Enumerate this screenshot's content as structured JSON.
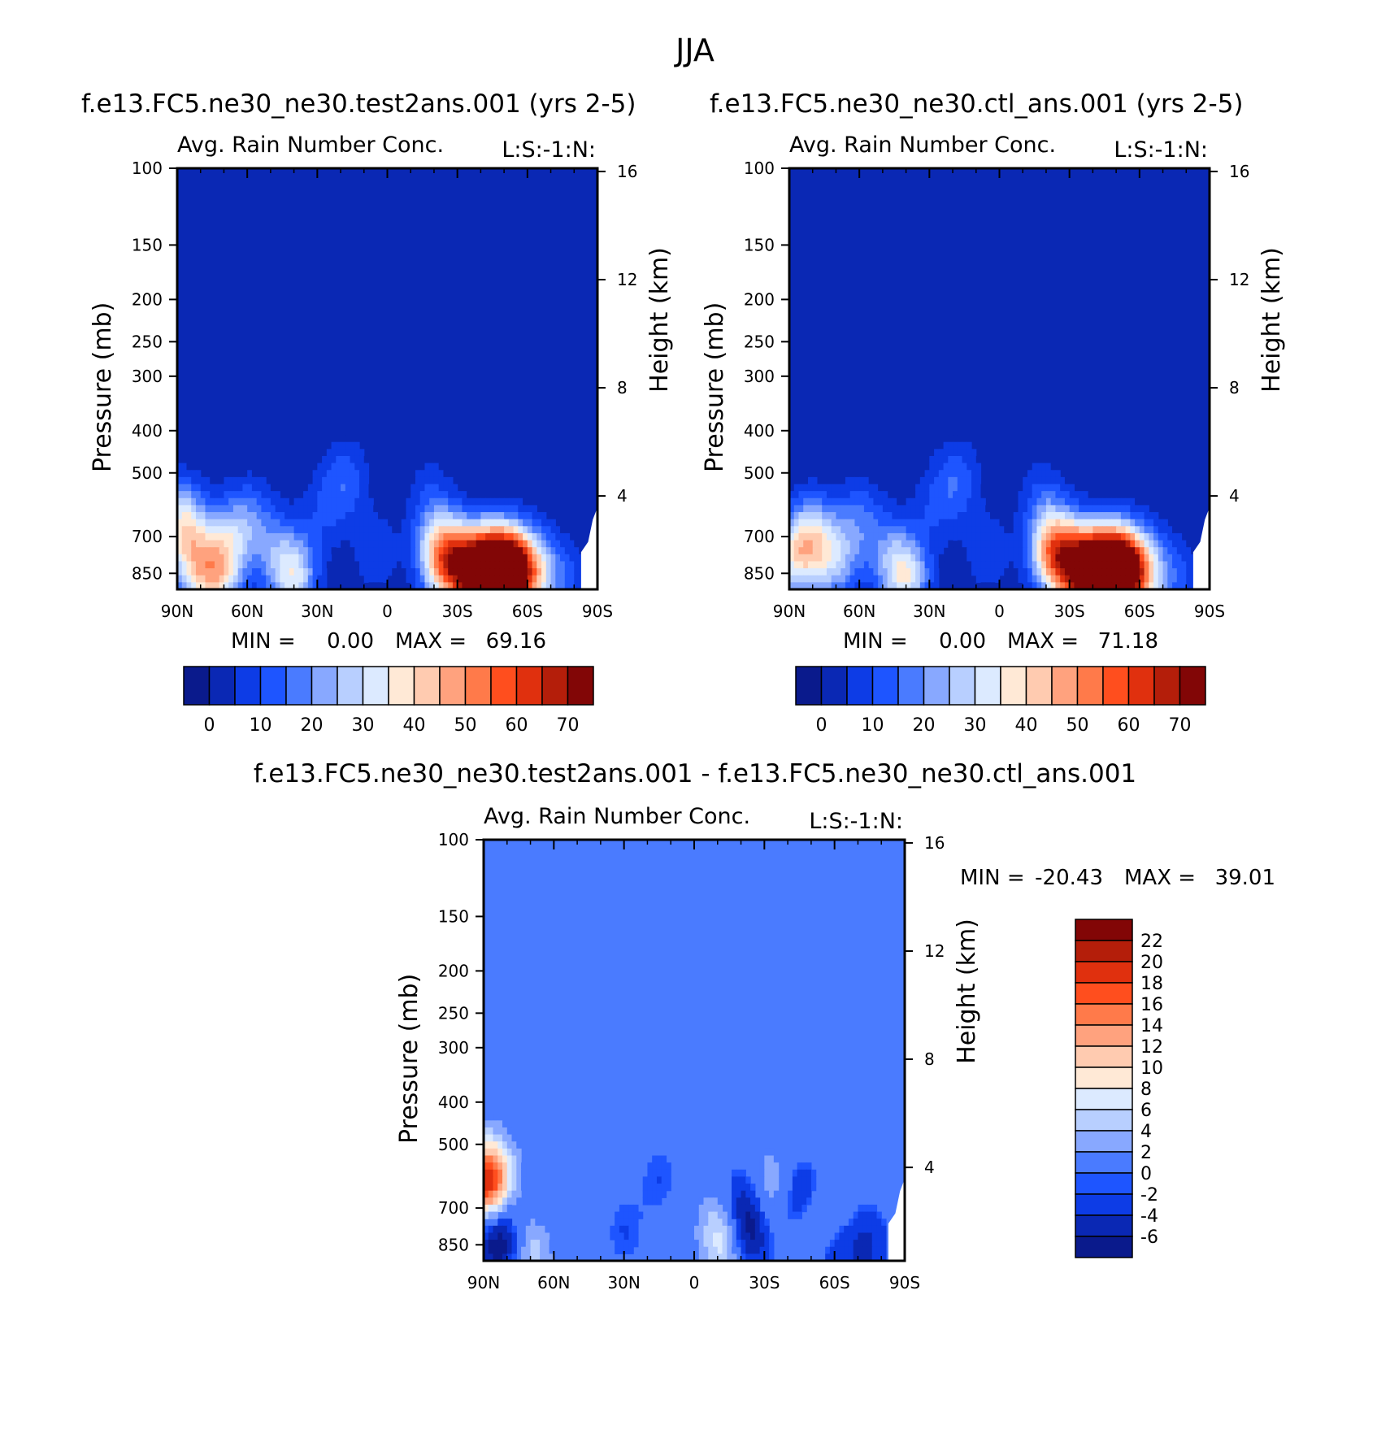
{
  "page_title": "JJA",
  "panels": [
    {
      "id": "test",
      "title": "f.e13.FC5.ne30_ne30.test2ans.001 (yrs 2-5)",
      "subtitle": "Avg. Rain Number Conc.",
      "flags": "L:S:-1:N:",
      "ylabel": "Pressure (mb)",
      "ylabel_right": "Height (km)",
      "min_label": "MIN =",
      "min_value": "0.00",
      "max_label": "MAX =",
      "max_value": "69.16"
    },
    {
      "id": "ctl",
      "title": "f.e13.FC5.ne30_ne30.ctl_ans.001 (yrs 2-5)",
      "subtitle": "Avg. Rain Number Conc.",
      "flags": "L:S:-1:N:",
      "ylabel": "Pressure (mb)",
      "ylabel_right": "Height (km)",
      "min_label": "MIN =",
      "min_value": "0.00",
      "max_label": "MAX =",
      "max_value": "71.18"
    },
    {
      "id": "diff",
      "title": "f.e13.FC5.ne30_ne30.test2ans.001 - f.e13.FC5.ne30_ne30.ctl_ans.001",
      "subtitle": "Avg. Rain Number Conc.",
      "flags": "L:S:-1:N:",
      "ylabel": "Pressure (mb)",
      "ylabel_right": "Height (km)",
      "min_label": "MIN =",
      "min_value": "-20.43",
      "max_label": "MAX =",
      "max_value": "39.01"
    }
  ],
  "colorbars": {
    "abs": {
      "colors": [
        "#0a1a8c",
        "#0a28b4",
        "#0d3ce6",
        "#1e55ff",
        "#4a7bff",
        "#88a8ff",
        "#b8cfff",
        "#dceaff",
        "#ffe9d6",
        "#ffcbb0",
        "#ffa27e",
        "#ff7a4a",
        "#ff4e1e",
        "#e0300e",
        "#b41e0a",
        "#820606"
      ],
      "labels": [
        "0",
        "10",
        "20",
        "30",
        "40",
        "50",
        "60",
        "70"
      ]
    },
    "diff": {
      "colors": [
        "#820606",
        "#b41e0a",
        "#e0300e",
        "#ff4e1e",
        "#ff7a4a",
        "#ffa27e",
        "#ffcbb0",
        "#ffe9d6",
        "#dceaff",
        "#b8cfff",
        "#88a8ff",
        "#4a7bff",
        "#1e55ff",
        "#0d3ce6",
        "#0a28b4",
        "#0a1a8c"
      ],
      "labels": [
        "22",
        "20",
        "18",
        "16",
        "14",
        "12",
        "10",
        "8",
        "6",
        "4",
        "2",
        "0",
        "-2",
        "-4",
        "-6"
      ]
    }
  },
  "chart_data": [
    {
      "type": "heatmap",
      "title": "f.e13.FC5.ne30_ne30.test2ans.001 (yrs 2-5)",
      "subtitle": "Avg. Rain Number Conc.",
      "xlabel": "",
      "ylabel": "Pressure (mb)",
      "ylabel_right": "Height (km)",
      "x_ticks": [
        "90N",
        "60N",
        "30N",
        "0",
        "30S",
        "60S",
        "90S"
      ],
      "x_range": [
        90,
        -90
      ],
      "y_ticks": [
        100,
        150,
        200,
        250,
        300,
        400,
        500,
        700,
        850
      ],
      "y_range": [
        100,
        925
      ],
      "y_scale": "log",
      "y2_ticks": [
        16,
        12,
        8,
        4
      ],
      "min": 0.0,
      "max": 69.16,
      "levels": [
        0,
        5,
        10,
        15,
        20,
        25,
        30,
        35,
        40,
        45,
        50,
        55,
        60,
        65,
        70
      ],
      "background": "#0a28b4",
      "blobs": [
        {
          "lat": 88,
          "p": 650,
          "v": 32
        },
        {
          "lat": 82,
          "p": 820,
          "v": 26
        },
        {
          "lat": 72,
          "p": 860,
          "v": 30
        },
        {
          "lat": 68,
          "p": 700,
          "v": 18
        },
        {
          "lat": 58,
          "p": 640,
          "v": 14
        },
        {
          "lat": 48,
          "p": 760,
          "v": 12
        },
        {
          "lat": 40,
          "p": 865,
          "v": 30
        },
        {
          "lat": 28,
          "p": 620,
          "v": 8
        },
        {
          "lat": 18,
          "p": 520,
          "v": 13
        },
        {
          "lat": 5,
          "p": 760,
          "v": 9
        },
        {
          "lat": -18,
          "p": 560,
          "v": 8
        },
        {
          "lat": -22,
          "p": 760,
          "v": 34
        },
        {
          "lat": -30,
          "p": 820,
          "v": 42
        },
        {
          "lat": -40,
          "p": 840,
          "v": 55
        },
        {
          "lat": -48,
          "p": 845,
          "v": 69
        },
        {
          "lat": -56,
          "p": 840,
          "v": 50
        },
        {
          "lat": -66,
          "p": 850,
          "v": 18
        },
        {
          "lat": -78,
          "p": 880,
          "v": 8
        }
      ]
    },
    {
      "type": "heatmap",
      "title": "f.e13.FC5.ne30_ne30.ctl_ans.001 (yrs 2-5)",
      "subtitle": "Avg. Rain Number Conc.",
      "xlabel": "",
      "ylabel": "Pressure (mb)",
      "ylabel_right": "Height (km)",
      "x_ticks": [
        "90N",
        "60N",
        "30N",
        "0",
        "30S",
        "60S",
        "90S"
      ],
      "x_range": [
        90,
        -90
      ],
      "y_ticks": [
        100,
        150,
        200,
        250,
        300,
        400,
        500,
        700,
        850
      ],
      "y_range": [
        100,
        925
      ],
      "y_scale": "log",
      "y2_ticks": [
        16,
        12,
        8,
        4
      ],
      "min": 0.0,
      "max": 71.18,
      "levels": [
        0,
        5,
        10,
        15,
        20,
        25,
        30,
        35,
        40,
        45,
        50,
        55,
        60,
        65,
        70
      ],
      "background": "#0a28b4",
      "blobs": [
        {
          "lat": 88,
          "p": 780,
          "v": 28
        },
        {
          "lat": 80,
          "p": 700,
          "v": 26
        },
        {
          "lat": 70,
          "p": 800,
          "v": 22
        },
        {
          "lat": 60,
          "p": 640,
          "v": 14
        },
        {
          "lat": 48,
          "p": 760,
          "v": 12
        },
        {
          "lat": 40,
          "p": 865,
          "v": 32
        },
        {
          "lat": 28,
          "p": 600,
          "v": 8
        },
        {
          "lat": 18,
          "p": 520,
          "v": 13
        },
        {
          "lat": 5,
          "p": 760,
          "v": 9
        },
        {
          "lat": -18,
          "p": 560,
          "v": 8
        },
        {
          "lat": -22,
          "p": 740,
          "v": 36
        },
        {
          "lat": -30,
          "p": 810,
          "v": 44
        },
        {
          "lat": -40,
          "p": 840,
          "v": 56
        },
        {
          "lat": -48,
          "p": 845,
          "v": 71
        },
        {
          "lat": -56,
          "p": 840,
          "v": 50
        },
        {
          "lat": -66,
          "p": 850,
          "v": 16
        },
        {
          "lat": -78,
          "p": 880,
          "v": 8
        }
      ]
    },
    {
      "type": "heatmap",
      "title": "f.e13.FC5.ne30_ne30.test2ans.001 - f.e13.FC5.ne30_ne30.ctl_ans.001",
      "subtitle": "Avg. Rain Number Conc.",
      "xlabel": "",
      "ylabel": "Pressure (mb)",
      "ylabel_right": "Height (km)",
      "x_ticks": [
        "90N",
        "60N",
        "30N",
        "0",
        "30S",
        "60S",
        "90S"
      ],
      "x_range": [
        90,
        -90
      ],
      "y_ticks": [
        100,
        150,
        200,
        250,
        300,
        400,
        500,
        700,
        850
      ],
      "y_range": [
        100,
        925
      ],
      "y_scale": "log",
      "y2_ticks": [
        16,
        12,
        8,
        4
      ],
      "min": -20.43,
      "max": 39.01,
      "levels": [
        -6,
        -4,
        -2,
        0,
        2,
        4,
        6,
        8,
        10,
        12,
        14,
        16,
        18,
        20,
        22
      ],
      "background": "#4a7bff",
      "blobs": [
        {
          "lat": 88,
          "p": 620,
          "v": 24
        },
        {
          "lat": 86,
          "p": 730,
          "v": -8
        },
        {
          "lat": 82,
          "p": 860,
          "v": -6
        },
        {
          "lat": 70,
          "p": 870,
          "v": 6
        },
        {
          "lat": 60,
          "p": 700,
          "v": -2
        },
        {
          "lat": 40,
          "p": 500,
          "v": -1
        },
        {
          "lat": 30,
          "p": 800,
          "v": -2
        },
        {
          "lat": 15,
          "p": 600,
          "v": -2
        },
        {
          "lat": -12,
          "p": 760,
          "v": 5
        },
        {
          "lat": -15,
          "p": 860,
          "v": 7
        },
        {
          "lat": -20,
          "p": 700,
          "v": -6
        },
        {
          "lat": -22,
          "p": 820,
          "v": -8
        },
        {
          "lat": -32,
          "p": 640,
          "v": 5
        },
        {
          "lat": -46,
          "p": 690,
          "v": -7
        },
        {
          "lat": -52,
          "p": 780,
          "v": 9
        },
        {
          "lat": -58,
          "p": 850,
          "v": -8
        },
        {
          "lat": -65,
          "p": 820,
          "v": 4
        },
        {
          "lat": -72,
          "p": 850,
          "v": -6
        }
      ]
    }
  ]
}
